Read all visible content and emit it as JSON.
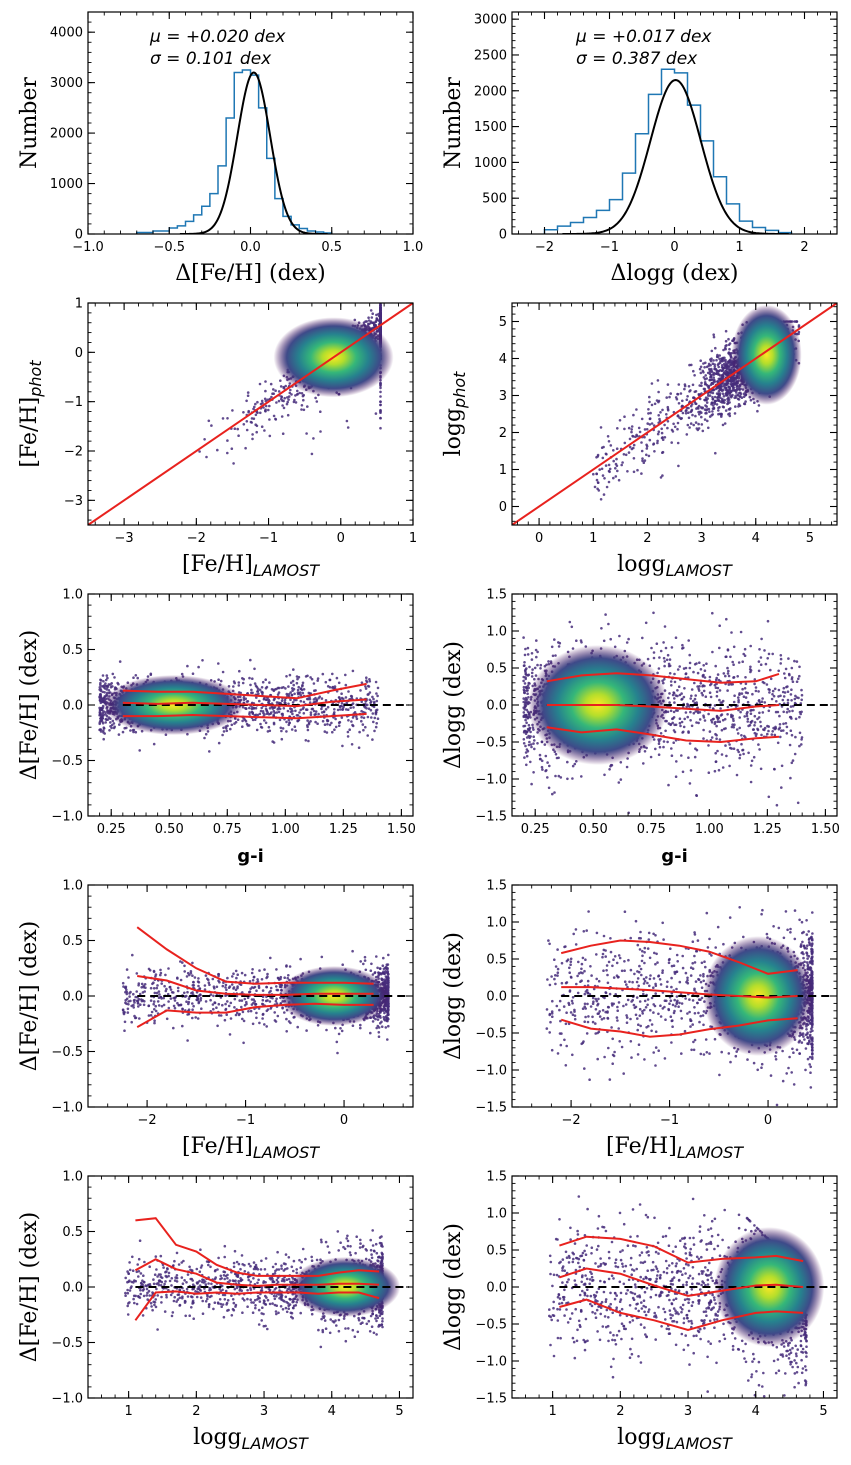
{
  "chart_data": [
    {
      "id": "p1",
      "type": "histogram",
      "xlabel": "Δ[Fe/H] (dex)",
      "ylabel": "Number",
      "xlim": [
        -1.0,
        1.0
      ],
      "ylim": [
        0,
        4400
      ],
      "xticks": [
        -1.0,
        -0.5,
        0.0,
        0.5,
        1.0
      ],
      "xtick_labels": [
        "−1.0",
        "−0.5",
        "0.0",
        "0.5",
        "1.0"
      ],
      "yticks": [
        0,
        1000,
        2000,
        3000,
        4000
      ],
      "ytick_labels": [
        "0",
        "1000",
        "2000",
        "3000",
        "4000"
      ],
      "annotations": [
        "μ = +0.020 dex",
        "σ = 0.101 dex"
      ],
      "gauss": {
        "mu": 0.02,
        "sigma": 0.101,
        "amp": 3200
      },
      "bins": [
        -0.7,
        -0.6,
        -0.5,
        -0.45,
        -0.4,
        -0.35,
        -0.3,
        -0.25,
        -0.2,
        -0.15,
        -0.1,
        -0.05,
        0.0,
        0.05,
        0.1,
        0.15,
        0.2,
        0.25,
        0.3,
        0.35,
        0.4,
        0.45,
        0.5
      ],
      "counts": [
        30,
        60,
        120,
        160,
        250,
        380,
        550,
        800,
        1350,
        2300,
        3200,
        3250,
        3150,
        2500,
        1500,
        700,
        350,
        180,
        110,
        60,
        40,
        20
      ]
    },
    {
      "id": "p2",
      "type": "histogram",
      "xlabel": "Δlogg (dex)",
      "ylabel": "Number",
      "xlim": [
        -2.5,
        2.5
      ],
      "ylim": [
        0,
        3100
      ],
      "xticks": [
        -2,
        -1,
        0,
        1,
        2
      ],
      "xtick_labels": [
        "−2",
        "−1",
        "0",
        "1",
        "2"
      ],
      "yticks": [
        0,
        500,
        1000,
        1500,
        2000,
        2500,
        3000
      ],
      "ytick_labels": [
        "0",
        "500",
        "1000",
        "1500",
        "2000",
        "2500",
        "3000"
      ],
      "annotations": [
        "μ = +0.017 dex",
        "σ = 0.387 dex"
      ],
      "gauss": {
        "mu": 0.017,
        "sigma": 0.387,
        "amp": 2150
      },
      "bins": [
        -2.0,
        -1.8,
        -1.6,
        -1.4,
        -1.2,
        -1.0,
        -0.8,
        -0.6,
        -0.4,
        -0.2,
        0.0,
        0.2,
        0.4,
        0.6,
        0.8,
        1.0,
        1.2,
        1.4,
        1.6,
        1.8
      ],
      "counts": [
        60,
        110,
        160,
        230,
        330,
        480,
        850,
        1400,
        1950,
        2300,
        2250,
        1800,
        1300,
        800,
        420,
        180,
        90,
        50,
        20
      ]
    },
    {
      "id": "p3",
      "type": "scatter",
      "xlabel": "[Fe/H]",
      "xlabel_sub": "LAMOST",
      "ylabel": "[Fe/H]",
      "ylabel_sub": "phot",
      "xlim": [
        -3.5,
        1.0
      ],
      "ylim": [
        -3.5,
        1.0
      ],
      "xticks": [
        -3,
        -2,
        -1,
        0,
        1
      ],
      "xtick_labels": [
        "−3",
        "−2",
        "−1",
        "0",
        "1"
      ],
      "yticks": [
        -3,
        -2,
        -1,
        0,
        1
      ],
      "ytick_labels": [
        "−3",
        "−2",
        "−1",
        "0",
        "1"
      ],
      "one_to_one": true
    },
    {
      "id": "p4",
      "type": "scatter",
      "xlabel": "logg",
      "xlabel_sub": "LAMOST",
      "ylabel": "logg",
      "ylabel_sub": "phot",
      "xlim": [
        -0.5,
        5.5
      ],
      "ylim": [
        -0.5,
        5.5
      ],
      "xticks": [
        0,
        1,
        2,
        3,
        4,
        5
      ],
      "xtick_labels": [
        "0",
        "1",
        "2",
        "3",
        "4",
        "5"
      ],
      "yticks": [
        0,
        1,
        2,
        3,
        4,
        5
      ],
      "ytick_labels": [
        "0",
        "1",
        "2",
        "3",
        "4",
        "5"
      ],
      "one_to_one": true
    },
    {
      "id": "p5",
      "type": "scatter",
      "xlabel": "g-i",
      "ylabel": "Δ[Fe/H] (dex)",
      "xlim": [
        0.15,
        1.55
      ],
      "ylim": [
        -1.0,
        1.0
      ],
      "xticks": [
        0.25,
        0.5,
        0.75,
        1.0,
        1.25,
        1.5
      ],
      "xtick_labels": [
        "0.25",
        "0.50",
        "0.75",
        "1.00",
        "1.25",
        "1.50"
      ],
      "yticks": [
        -1.0,
        -0.5,
        0.0,
        0.5,
        1.0
      ],
      "ytick_labels": [
        "−1.0",
        "−0.5",
        "0.0",
        "0.5",
        "1.0"
      ],
      "zero_line": true,
      "trend_x": [
        0.3,
        0.45,
        0.6,
        0.75,
        0.9,
        1.05,
        1.2,
        1.35
      ],
      "trend_upper": [
        0.13,
        0.12,
        0.12,
        0.1,
        0.08,
        0.06,
        0.13,
        0.19
      ],
      "trend_median": [
        0.02,
        0.01,
        0.02,
        0.01,
        0.0,
        -0.01,
        0.03,
        0.05
      ],
      "trend_lower": [
        -0.1,
        -0.1,
        -0.09,
        -0.1,
        -0.11,
        -0.12,
        -0.1,
        -0.08
      ]
    },
    {
      "id": "p6",
      "type": "scatter",
      "xlabel": "g-i",
      "ylabel": "Δlogg (dex)",
      "xlim": [
        0.15,
        1.55
      ],
      "ylim": [
        -1.5,
        1.5
      ],
      "xticks": [
        0.25,
        0.5,
        0.75,
        1.0,
        1.25,
        1.5
      ],
      "xtick_labels": [
        "0.25",
        "0.50",
        "0.75",
        "1.00",
        "1.25",
        "1.50"
      ],
      "yticks": [
        -1.5,
        -1.0,
        -0.5,
        0.0,
        0.5,
        1.0,
        1.5
      ],
      "ytick_labels": [
        "−1.5",
        "−1.0",
        "−0.5",
        "0.0",
        "0.5",
        "1.0",
        "1.5"
      ],
      "zero_line": true,
      "trend_x": [
        0.3,
        0.45,
        0.6,
        0.75,
        0.9,
        1.05,
        1.2,
        1.3
      ],
      "trend_upper": [
        0.32,
        0.4,
        0.43,
        0.4,
        0.35,
        0.3,
        0.32,
        0.42
      ],
      "trend_median": [
        0.0,
        0.0,
        0.0,
        -0.02,
        -0.05,
        -0.08,
        -0.02,
        0.0
      ],
      "trend_lower": [
        -0.3,
        -0.37,
        -0.33,
        -0.4,
        -0.48,
        -0.5,
        -0.45,
        -0.43
      ]
    },
    {
      "id": "p7",
      "type": "scatter",
      "xlabel": "[Fe/H]",
      "xlabel_sub": "LAMOST",
      "ylabel": "Δ[Fe/H] (dex)",
      "xlim": [
        -2.6,
        0.7
      ],
      "ylim": [
        -1.0,
        1.0
      ],
      "xticks": [
        -2,
        -1,
        0
      ],
      "xtick_labels": [
        "−2",
        "−1",
        "0"
      ],
      "yticks": [
        -1.0,
        -0.5,
        0.0,
        0.5,
        1.0
      ],
      "ytick_labels": [
        "−1.0",
        "−0.5",
        "0.0",
        "0.5",
        "1.0"
      ],
      "zero_line": true,
      "trend_x": [
        -2.1,
        -1.8,
        -1.5,
        -1.2,
        -0.9,
        -0.6,
        -0.3,
        0.0,
        0.3
      ],
      "trend_upper": [
        0.62,
        0.42,
        0.25,
        0.13,
        0.11,
        0.12,
        0.12,
        0.12,
        0.11
      ],
      "trend_median": [
        0.18,
        0.14,
        0.05,
        0.02,
        0.01,
        0.01,
        0.02,
        0.02,
        0.02
      ],
      "trend_lower": [
        -0.28,
        -0.13,
        -0.15,
        -0.15,
        -0.1,
        -0.08,
        -0.07,
        -0.08,
        -0.08
      ]
    },
    {
      "id": "p8",
      "type": "scatter",
      "xlabel": "[Fe/H]",
      "xlabel_sub": "LAMOST",
      "ylabel": "Δlogg (dex)",
      "xlim": [
        -2.6,
        0.7
      ],
      "ylim": [
        -1.5,
        1.5
      ],
      "xticks": [
        -2,
        -1,
        0
      ],
      "xtick_labels": [
        "−2",
        "−1",
        "0"
      ],
      "yticks": [
        -1.5,
        -1.0,
        -0.5,
        0.0,
        0.5,
        1.0,
        1.5
      ],
      "ytick_labels": [
        "−1.5",
        "−1.0",
        "−0.5",
        "0.0",
        "0.5",
        "1.0",
        "1.5"
      ],
      "zero_line": true,
      "trend_x": [
        -2.1,
        -1.8,
        -1.5,
        -1.2,
        -0.9,
        -0.6,
        -0.3,
        0.0,
        0.3
      ],
      "trend_upper": [
        0.58,
        0.68,
        0.75,
        0.73,
        0.68,
        0.6,
        0.46,
        0.3,
        0.35
      ],
      "trend_median": [
        0.12,
        0.12,
        0.1,
        0.08,
        0.05,
        0.02,
        0.0,
        -0.02,
        0.0
      ],
      "trend_lower": [
        -0.32,
        -0.44,
        -0.48,
        -0.55,
        -0.52,
        -0.45,
        -0.4,
        -0.33,
        -0.3
      ]
    },
    {
      "id": "p9",
      "type": "scatter",
      "xlabel": "logg",
      "xlabel_sub": "LAMOST",
      "ylabel": "Δ[Fe/H] (dex)",
      "xlim": [
        0.4,
        5.2
      ],
      "ylim": [
        -1.0,
        1.0
      ],
      "xticks": [
        1,
        2,
        3,
        4,
        5
      ],
      "xtick_labels": [
        "1",
        "2",
        "3",
        "4",
        "5"
      ],
      "yticks": [
        -1.0,
        -0.5,
        0.0,
        0.5,
        1.0
      ],
      "ytick_labels": [
        "−1.0",
        "−0.5",
        "0.0",
        "0.5",
        "1.0"
      ],
      "zero_line": true,
      "trend_x": [
        1.1,
        1.4,
        1.7,
        2.0,
        2.3,
        2.6,
        2.9,
        3.2,
        3.5,
        3.8,
        4.1,
        4.4,
        4.7
      ],
      "trend_upper": [
        0.6,
        0.62,
        0.38,
        0.32,
        0.2,
        0.13,
        0.1,
        0.1,
        0.1,
        0.1,
        0.13,
        0.15,
        0.14
      ],
      "trend_median": [
        0.15,
        0.25,
        0.16,
        0.12,
        0.04,
        0.02,
        0.01,
        0.02,
        0.02,
        0.02,
        0.03,
        0.03,
        0.02
      ],
      "trend_lower": [
        -0.3,
        -0.05,
        -0.04,
        -0.06,
        -0.05,
        -0.06,
        -0.05,
        -0.05,
        -0.05,
        -0.06,
        -0.05,
        -0.05,
        -0.1
      ]
    },
    {
      "id": "p10",
      "type": "scatter",
      "xlabel": "logg",
      "xlabel_sub": "LAMOST",
      "ylabel": "Δlogg (dex)",
      "xlim": [
        0.4,
        5.2
      ],
      "ylim": [
        -1.5,
        1.5
      ],
      "xticks": [
        1,
        2,
        3,
        4,
        5
      ],
      "xtick_labels": [
        "1",
        "2",
        "3",
        "4",
        "5"
      ],
      "yticks": [
        -1.5,
        -1.0,
        -0.5,
        0.0,
        0.5,
        1.0,
        1.5
      ],
      "ytick_labels": [
        "−1.5",
        "−1.0",
        "−0.5",
        "0.0",
        "0.5",
        "1.0",
        "1.5"
      ],
      "zero_line": true,
      "trend_x": [
        1.1,
        1.5,
        2.0,
        2.5,
        3.0,
        3.5,
        4.0,
        4.3,
        4.7
      ],
      "trend_upper": [
        0.56,
        0.68,
        0.65,
        0.55,
        0.33,
        0.38,
        0.4,
        0.42,
        0.35
      ],
      "trend_median": [
        0.13,
        0.25,
        0.18,
        0.02,
        -0.12,
        -0.05,
        0.02,
        0.03,
        0.0
      ],
      "trend_lower": [
        -0.27,
        -0.17,
        -0.35,
        -0.45,
        -0.58,
        -0.45,
        -0.35,
        -0.33,
        -0.35
      ]
    }
  ]
}
